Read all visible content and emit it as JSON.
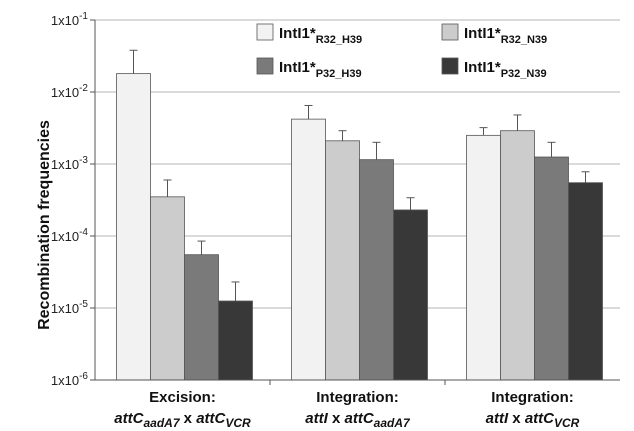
{
  "chart_data": {
    "type": "bar",
    "ylabel": "Recombination frequencies",
    "yscale": "log",
    "ylim": [
      1e-06,
      0.1
    ],
    "yticks": [
      {
        "value": 0.1,
        "label": "1x10",
        "exp": "-1"
      },
      {
        "value": 0.01,
        "label": "1x10",
        "exp": "-2"
      },
      {
        "value": 0.001,
        "label": "1x10",
        "exp": "-3"
      },
      {
        "value": 0.0001,
        "label": "1x10",
        "exp": "-4"
      },
      {
        "value": 1e-05,
        "label": "1x10",
        "exp": "-5"
      },
      {
        "value": 1e-06,
        "label": "1x10",
        "exp": "-6"
      }
    ],
    "grid": "horizontal",
    "legend_position": "top-right",
    "categories": [
      {
        "line1": "Excision:",
        "a": "attC",
        "a_sub": "aadA7",
        "mid": " x ",
        "b": "attC",
        "b_sub": "VCR"
      },
      {
        "line1": "Integration:",
        "a": "attI",
        "a_sub": "",
        "mid": " x ",
        "b": "attC",
        "b_sub": "aadA7"
      },
      {
        "line1": "Integration:",
        "a": "attI",
        "a_sub": "",
        "mid": " x ",
        "b": "attC",
        "b_sub": "VCR"
      }
    ],
    "series": [
      {
        "name": "IntI1*",
        "sub": "R32_H39",
        "color": "#f2f2f2",
        "values": [
          0.018,
          0.0042,
          0.0025
        ],
        "errors": [
          0.038,
          0.0065,
          0.0032
        ]
      },
      {
        "name": "IntI1*",
        "sub": "R32_N39",
        "color": "#cccccc",
        "values": [
          0.00035,
          0.0021,
          0.0029
        ],
        "errors": [
          0.0006,
          0.0029,
          0.0048
        ]
      },
      {
        "name": "IntI1*",
        "sub": "P32_H39",
        "color": "#7a7a7a",
        "values": [
          5.5e-05,
          0.00115,
          0.00125
        ],
        "errors": [
          8.5e-05,
          0.002,
          0.002
        ]
      },
      {
        "name": "IntI1*",
        "sub": "P32_N39",
        "color": "#383838",
        "values": [
          1.25e-05,
          0.00023,
          0.00055
        ],
        "errors": [
          2.3e-05,
          0.00034,
          0.00078
        ]
      }
    ]
  }
}
